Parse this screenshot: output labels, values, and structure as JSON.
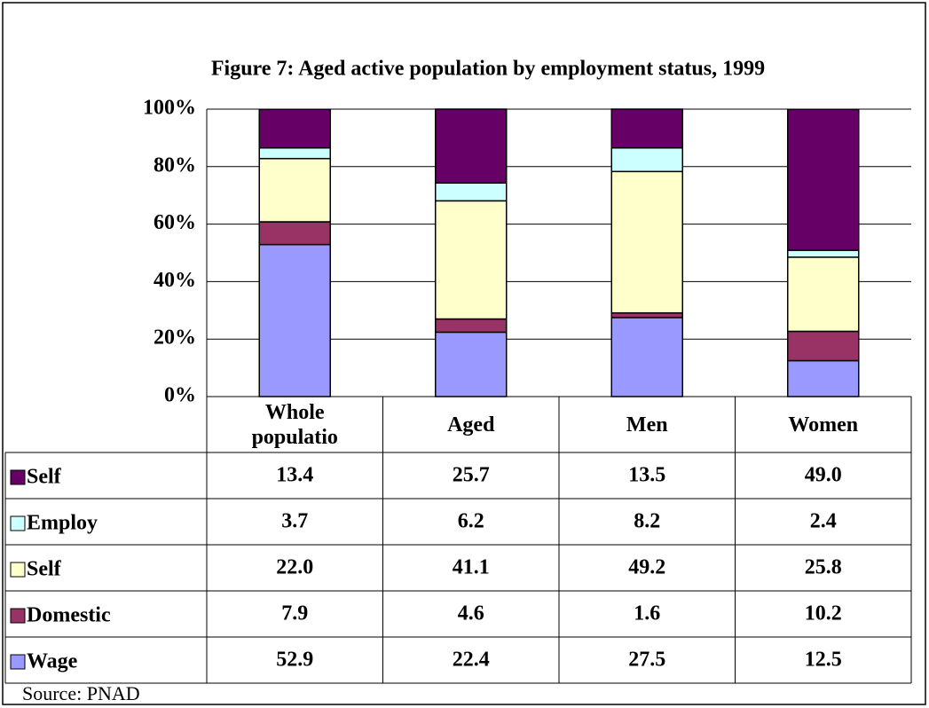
{
  "chart_data": {
    "type": "stacked-bar",
    "title": "Figure 7:  Aged active population by employment status, 1999",
    "categories": [
      "Whole populatio",
      "Aged",
      "Men",
      "Women"
    ],
    "series": [
      {
        "name": "Wage",
        "color": "#9999ff",
        "values": [
          52.9,
          22.4,
          27.5,
          12.5
        ],
        "value_labels": [
          "52.9",
          "22.4",
          "27.5",
          "12.5"
        ]
      },
      {
        "name": "Domestic",
        "color": "#993366",
        "values": [
          7.9,
          4.6,
          1.6,
          10.2
        ],
        "value_labels": [
          "7.9",
          "4.6",
          "1.6",
          "10.2"
        ]
      },
      {
        "name": "Self",
        "color": "#ffffcc",
        "values": [
          22.0,
          41.1,
          49.2,
          25.8
        ],
        "value_labels": [
          "22.0",
          "41.1",
          "49.2",
          "25.8"
        ]
      },
      {
        "name": "Employ",
        "color": "#ccffff",
        "values": [
          3.7,
          6.2,
          8.2,
          2.4
        ],
        "value_labels": [
          "3.7",
          "6.2",
          "8.2",
          "2.4"
        ]
      },
      {
        "name": "Self",
        "color": "#660066",
        "values": [
          13.4,
          25.7,
          13.5,
          49.0
        ],
        "value_labels": [
          "13.4",
          "25.7",
          "13.5",
          "49.0"
        ]
      }
    ],
    "ylim": [
      0,
      100
    ],
    "yticks": [
      {
        "value": 0,
        "label": "0%"
      },
      {
        "value": 20,
        "label": "20%"
      },
      {
        "value": 40,
        "label": "40%"
      },
      {
        "value": 60,
        "label": "60%"
      },
      {
        "value": 80,
        "label": "80%"
      },
      {
        "value": 100,
        "label": "100%"
      }
    ],
    "grid": true,
    "source": "Source: PNAD"
  }
}
